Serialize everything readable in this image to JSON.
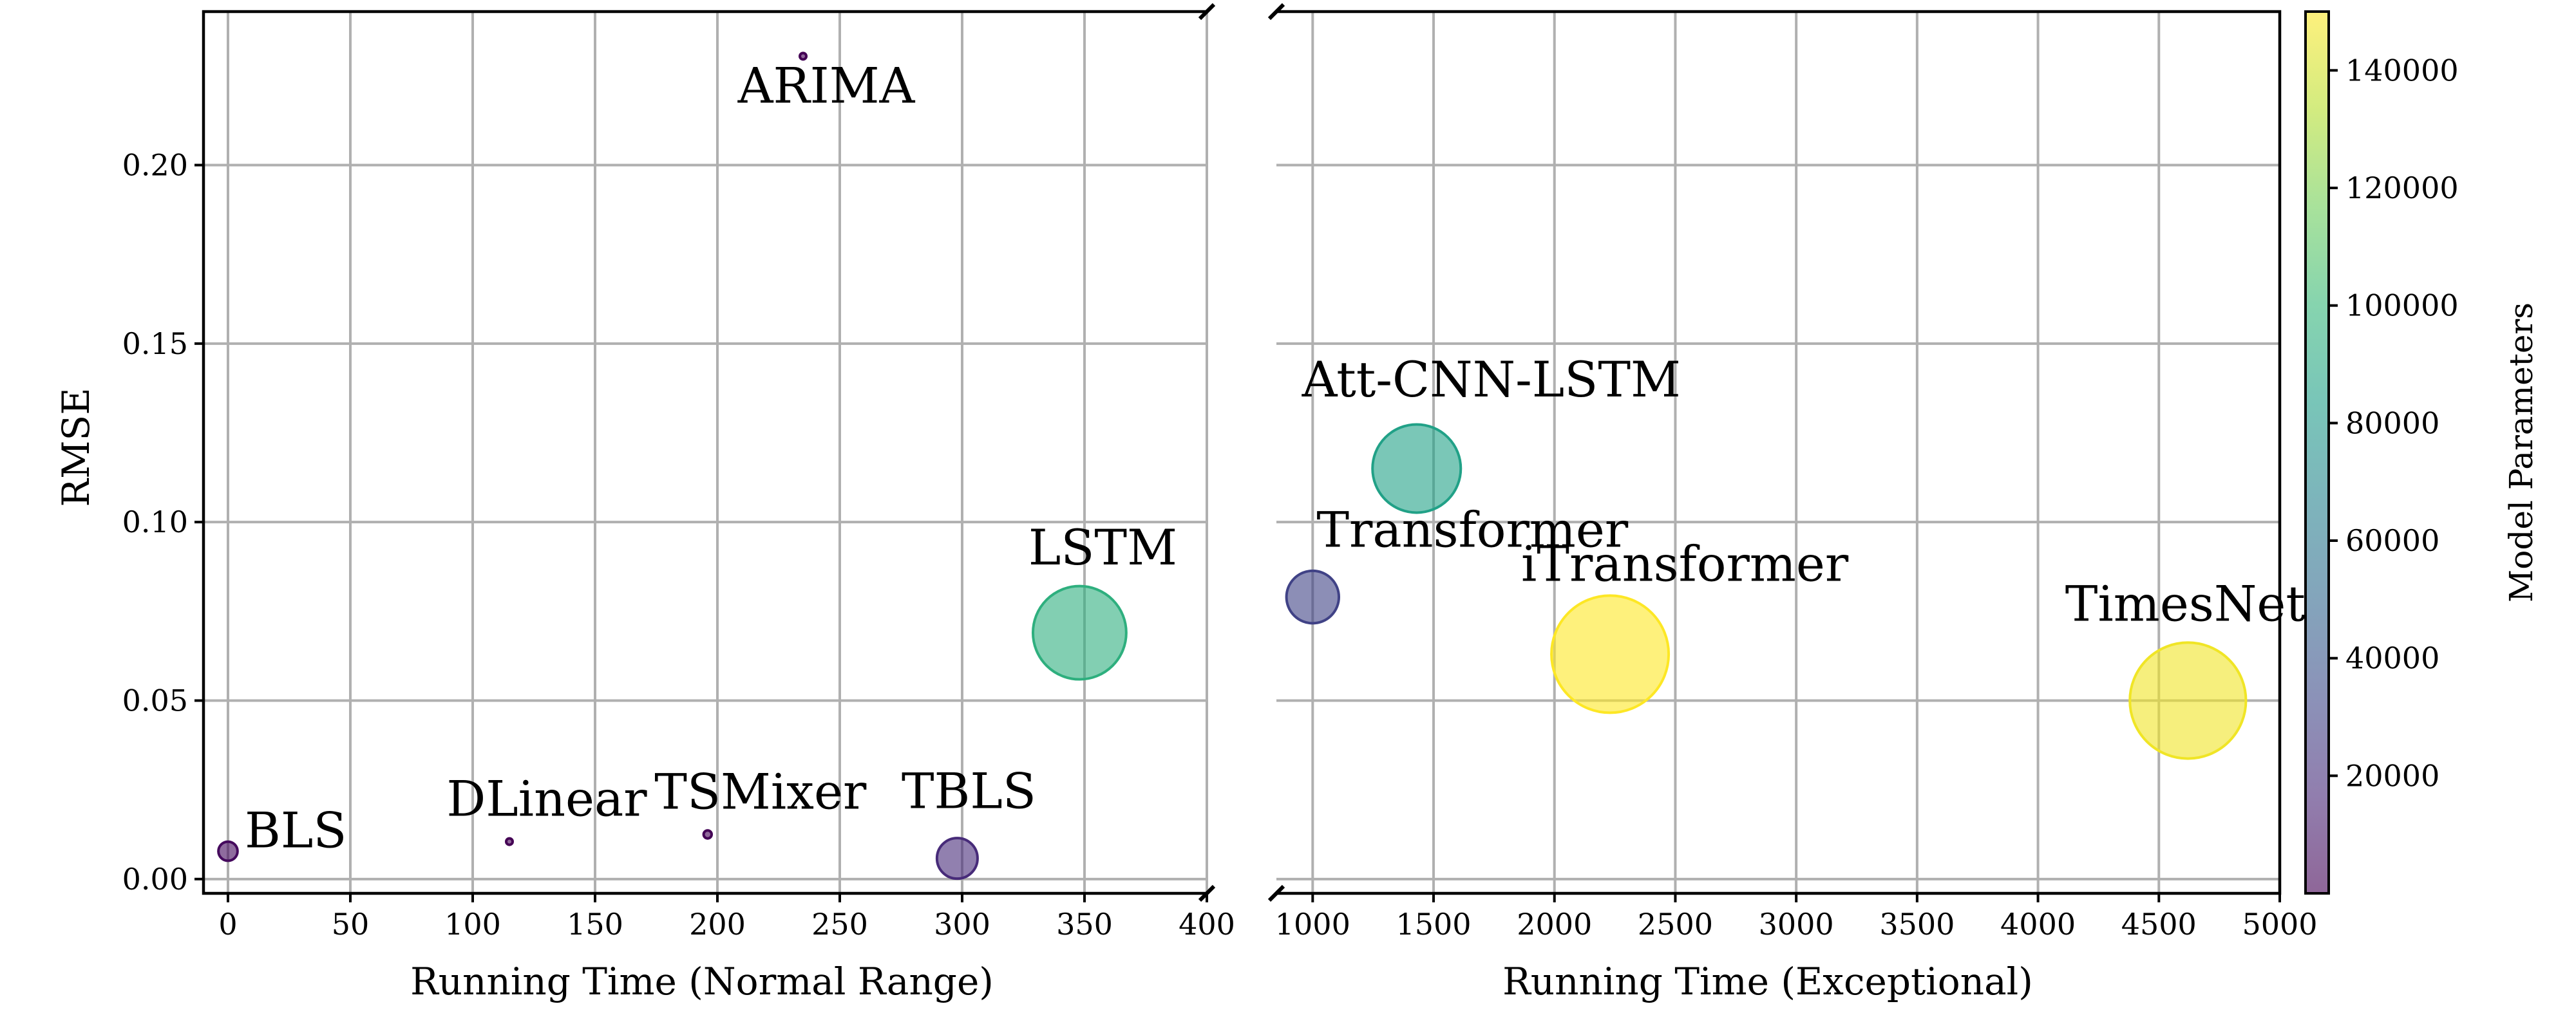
{
  "chart_data": {
    "type": "scatter",
    "subtype": "bubble-broken-x-axis",
    "ylabel": "RMSE",
    "ylim": [
      -0.004,
      0.243
    ],
    "yticks": [
      0.0,
      0.05,
      0.1,
      0.15,
      0.2
    ],
    "ytick_labels": [
      "0.00",
      "0.05",
      "0.10",
      "0.15",
      "0.20"
    ],
    "grid": true,
    "panels": [
      {
        "xlabel": "Running Time (Normal Range)",
        "xlim": [
          -10,
          400
        ],
        "xticks": [
          0,
          50,
          100,
          150,
          200,
          250,
          300,
          350,
          400
        ],
        "xtick_labels": [
          "0",
          "50",
          "100",
          "150",
          "200",
          "250",
          "300",
          "350",
          "400"
        ]
      },
      {
        "xlabel": "Running Time (Exceptional)",
        "xlim": [
          850,
          5000
        ],
        "xticks": [
          1000,
          1500,
          2000,
          2500,
          3000,
          3500,
          4000,
          4500,
          5000
        ],
        "xtick_labels": [
          "1000",
          "1500",
          "2000",
          "2500",
          "3000",
          "3500",
          "4000",
          "4500",
          "5000"
        ]
      }
    ],
    "points": [
      {
        "label": "BLS",
        "x": 0,
        "y": 0.0078,
        "params": 4000,
        "panel": 0
      },
      {
        "label": "DLinear",
        "x": 115,
        "y": 0.0105,
        "params": 200,
        "panel": 0
      },
      {
        "label": "TSMixer",
        "x": 196,
        "y": 0.0125,
        "params": 700,
        "panel": 0
      },
      {
        "label": "ARIMA",
        "x": 235,
        "y": 0.2305,
        "params": 300,
        "panel": 0
      },
      {
        "label": "TBLS",
        "x": 298,
        "y": 0.0058,
        "params": 18000,
        "panel": 0
      },
      {
        "label": "LSTM",
        "x": 348,
        "y": 0.069,
        "params": 95000,
        "panel": 0
      },
      {
        "label": "Transformer",
        "x": 1000,
        "y": 0.079,
        "params": 30000,
        "panel": 1
      },
      {
        "label": "Att-CNN-LSTM",
        "x": 1430,
        "y": 0.115,
        "params": 85000,
        "panel": 1
      },
      {
        "label": "iTransformer",
        "x": 2230,
        "y": 0.063,
        "params": 150000,
        "panel": 1
      },
      {
        "label": "TimesNet",
        "x": 4620,
        "y": 0.05,
        "params": 147000,
        "panel": 1
      }
    ],
    "colorbar": {
      "label": "Model Parameters",
      "colormap": "viridis",
      "range": [
        0,
        150000
      ],
      "ticks": [
        20000,
        40000,
        60000,
        80000,
        100000,
        120000,
        140000
      ],
      "tick_labels": [
        "20000",
        "40000",
        "60000",
        "80000",
        "100000",
        "120000",
        "140000"
      ]
    },
    "alpha": 0.6
  }
}
